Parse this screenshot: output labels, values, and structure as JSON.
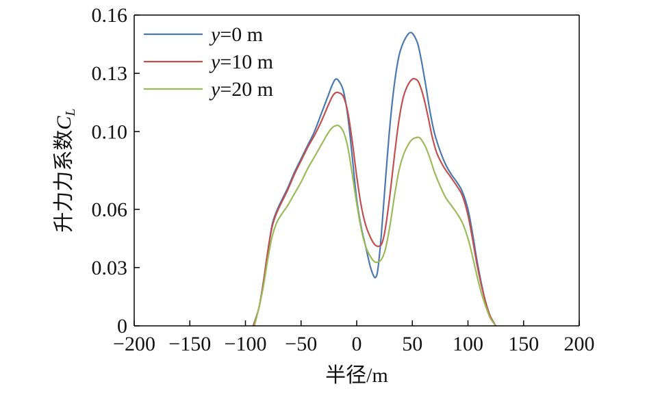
{
  "chart_data": {
    "type": "line",
    "xlabel": "半径/m",
    "ylabel": "升力力系数",
    "ylabel_symbol": "C",
    "ylabel_subscript": "L",
    "xlim": [
      -200,
      200
    ],
    "ylim": [
      0,
      0.16
    ],
    "xticks": [
      -200,
      -150,
      -100,
      -50,
      0,
      50,
      100,
      150,
      200
    ],
    "xtick_labels": [
      "−200",
      "−150",
      "−100",
      "−50",
      "0",
      "50",
      "100",
      "150",
      "200"
    ],
    "yticks": [
      0,
      0.03,
      0.06,
      0.1,
      0.13,
      0.16
    ],
    "ytick_labels": [
      "0",
      "0.03",
      "0.06",
      "0.10",
      "0.13",
      "0.16"
    ],
    "grid": false,
    "legend_position": "top-left",
    "series": [
      {
        "name": "y=0 m",
        "legend_var": "y",
        "legend_rest": "=0 m",
        "color": "#4a78b0",
        "x": [
          -93,
          -88,
          -84,
          -80,
          -76,
          -72,
          -68,
          -62,
          -56,
          -50,
          -44,
          -38,
          -32,
          -26,
          -22,
          -19,
          -16,
          -12,
          -8,
          -4,
          0,
          4,
          8,
          12,
          15,
          17,
          19,
          22,
          26,
          30,
          34,
          38,
          42,
          46,
          49,
          52,
          55,
          58,
          62,
          66,
          70,
          75,
          80,
          85,
          90,
          95,
          100,
          104,
          108,
          112,
          116,
          120,
          125
        ],
        "y": [
          0,
          0.009,
          0.022,
          0.038,
          0.052,
          0.059,
          0.064,
          0.071,
          0.079,
          0.086,
          0.093,
          0.1,
          0.109,
          0.118,
          0.124,
          0.127,
          0.126,
          0.121,
          0.108,
          0.087,
          0.065,
          0.051,
          0.041,
          0.031,
          0.026,
          0.025,
          0.029,
          0.046,
          0.076,
          0.104,
          0.125,
          0.139,
          0.146,
          0.15,
          0.151,
          0.149,
          0.145,
          0.137,
          0.124,
          0.11,
          0.099,
          0.09,
          0.083,
          0.078,
          0.074,
          0.069,
          0.06,
          0.048,
          0.034,
          0.022,
          0.012,
          0.005,
          0
        ]
      },
      {
        "name": "y=10 m",
        "legend_var": "y",
        "legend_rest": "=10 m",
        "color": "#c0504d",
        "x": [
          -93,
          -88,
          -84,
          -80,
          -76,
          -72,
          -68,
          -62,
          -56,
          -50,
          -44,
          -38,
          -32,
          -26,
          -22,
          -19,
          -16,
          -12,
          -8,
          -4,
          0,
          4,
          8,
          12,
          16,
          20,
          23,
          26,
          30,
          34,
          38,
          42,
          46,
          50,
          53,
          56,
          60,
          64,
          68,
          72,
          78,
          84,
          90,
          95,
          100,
          104,
          108,
          112,
          116,
          120,
          125
        ],
        "y": [
          0,
          0.009,
          0.022,
          0.038,
          0.051,
          0.058,
          0.063,
          0.07,
          0.078,
          0.085,
          0.092,
          0.098,
          0.105,
          0.113,
          0.118,
          0.12,
          0.12,
          0.118,
          0.11,
          0.095,
          0.077,
          0.062,
          0.052,
          0.046,
          0.042,
          0.041,
          0.043,
          0.051,
          0.068,
          0.088,
          0.106,
          0.118,
          0.124,
          0.127,
          0.127,
          0.125,
          0.118,
          0.108,
          0.097,
          0.089,
          0.082,
          0.077,
          0.072,
          0.067,
          0.057,
          0.045,
          0.032,
          0.021,
          0.012,
          0.005,
          0
        ]
      },
      {
        "name": "y=20 m",
        "legend_var": "y",
        "legend_rest": "=20 m",
        "color": "#9bbb59",
        "x": [
          -92,
          -88,
          -84,
          -80,
          -76,
          -72,
          -68,
          -62,
          -56,
          -50,
          -44,
          -38,
          -32,
          -26,
          -22,
          -19,
          -16,
          -12,
          -8,
          -4,
          0,
          4,
          8,
          12,
          16,
          20,
          23,
          26,
          30,
          34,
          38,
          42,
          46,
          50,
          54,
          56,
          58,
          62,
          66,
          70,
          75,
          80,
          85,
          90,
          95,
          100,
          104,
          108,
          112,
          116,
          120,
          125
        ],
        "y": [
          0,
          0.009,
          0.02,
          0.034,
          0.046,
          0.053,
          0.057,
          0.062,
          0.068,
          0.074,
          0.081,
          0.087,
          0.093,
          0.099,
          0.102,
          0.103,
          0.103,
          0.1,
          0.092,
          0.078,
          0.063,
          0.05,
          0.041,
          0.036,
          0.033,
          0.033,
          0.035,
          0.04,
          0.052,
          0.067,
          0.08,
          0.088,
          0.093,
          0.096,
          0.097,
          0.097,
          0.096,
          0.092,
          0.086,
          0.079,
          0.072,
          0.066,
          0.062,
          0.058,
          0.053,
          0.045,
          0.036,
          0.026,
          0.017,
          0.01,
          0.004,
          0
        ]
      }
    ]
  }
}
